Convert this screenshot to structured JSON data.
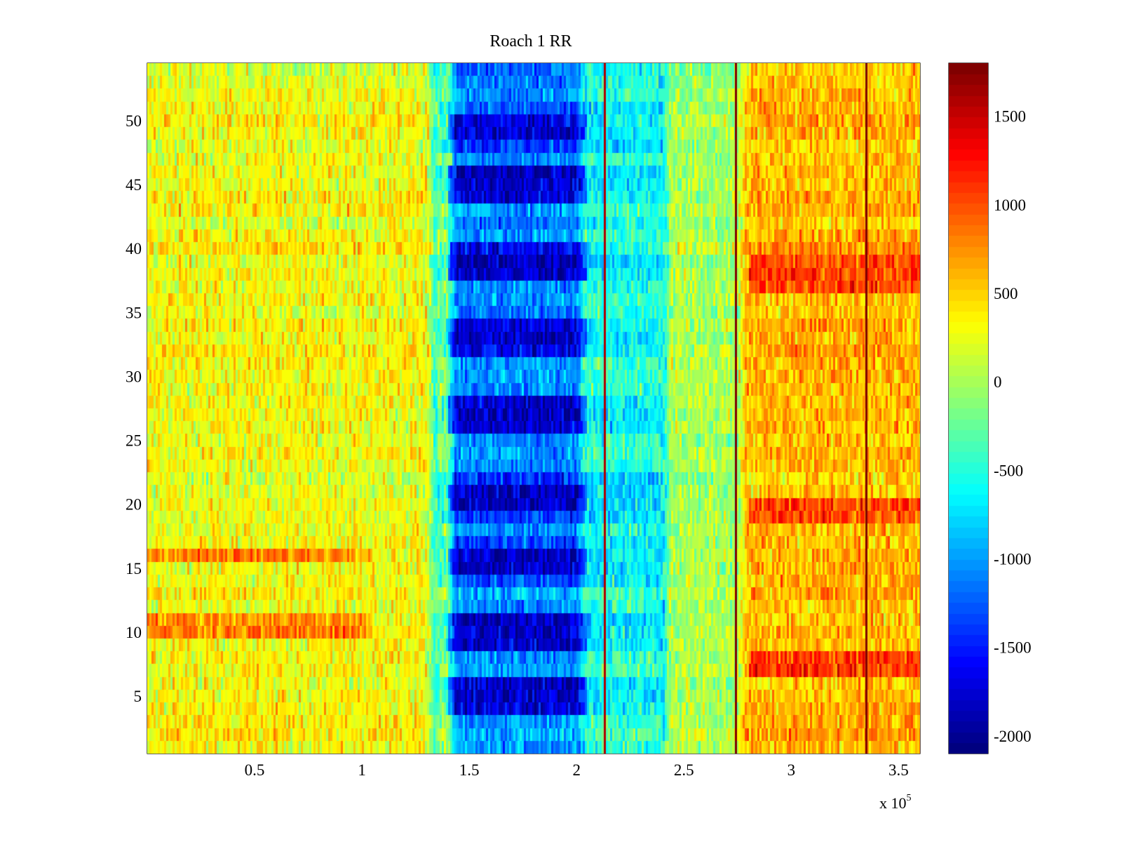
{
  "chart_data": {
    "type": "heatmap",
    "title": "Roach 1 RR",
    "xlabel": "",
    "ylabel": "",
    "x_exponent_label": {
      "base": "x 10",
      "exponent": "5"
    },
    "xlim": [
      0,
      3.6
    ],
    "x_scale": 100000,
    "ylim": [
      0.5,
      54.5
    ],
    "rows": 54,
    "xticks": [
      0.5,
      1,
      1.5,
      2,
      2.5,
      3,
      3.5
    ],
    "xtick_labels": [
      "0.5",
      "1",
      "1.5",
      "2",
      "2.5",
      "3",
      "3.5"
    ],
    "yticks": [
      5,
      10,
      15,
      20,
      25,
      30,
      35,
      40,
      45,
      50
    ],
    "ytick_labels": [
      "5",
      "10",
      "15",
      "20",
      "25",
      "30",
      "35",
      "40",
      "45",
      "50"
    ],
    "colormap": "jet",
    "clim": [
      -2100,
      1800
    ],
    "colorbar": {
      "ticks": [
        -2000,
        -1500,
        -1000,
        -500,
        0,
        500,
        1000,
        1500
      ],
      "tick_labels": [
        "-2000",
        "-1500",
        "-1000",
        "-500",
        "0",
        "500",
        "1000",
        "1500"
      ]
    },
    "regions": [
      {
        "x_start": 0.0,
        "x_end": 1.3,
        "mean_value": 300,
        "description": "green-yellow background"
      },
      {
        "x_start": 1.3,
        "x_end": 1.4,
        "mean_value": -400
      },
      {
        "x_start": 1.4,
        "x_end": 2.0,
        "mean_value": -1300
      },
      {
        "x_start": 2.0,
        "x_end": 2.4,
        "mean_value": -700
      },
      {
        "x_start": 2.4,
        "x_end": 2.75,
        "mean_value": 0
      },
      {
        "x_start": 2.75,
        "x_end": 3.6,
        "mean_value": 600
      }
    ],
    "hot_rows_left": [
      10.5,
      16
    ],
    "hot_rows_right": [
      7.5,
      19.5,
      38
    ],
    "deep_rows_center": [
      5,
      10,
      15.5,
      20.5,
      27,
      33,
      39,
      45,
      49.5
    ],
    "vertical_lines": [
      {
        "x": 2.13,
        "value": 1600
      },
      {
        "x": 2.74,
        "value": 1800
      },
      {
        "x": 3.35,
        "value": 1800
      }
    ]
  }
}
